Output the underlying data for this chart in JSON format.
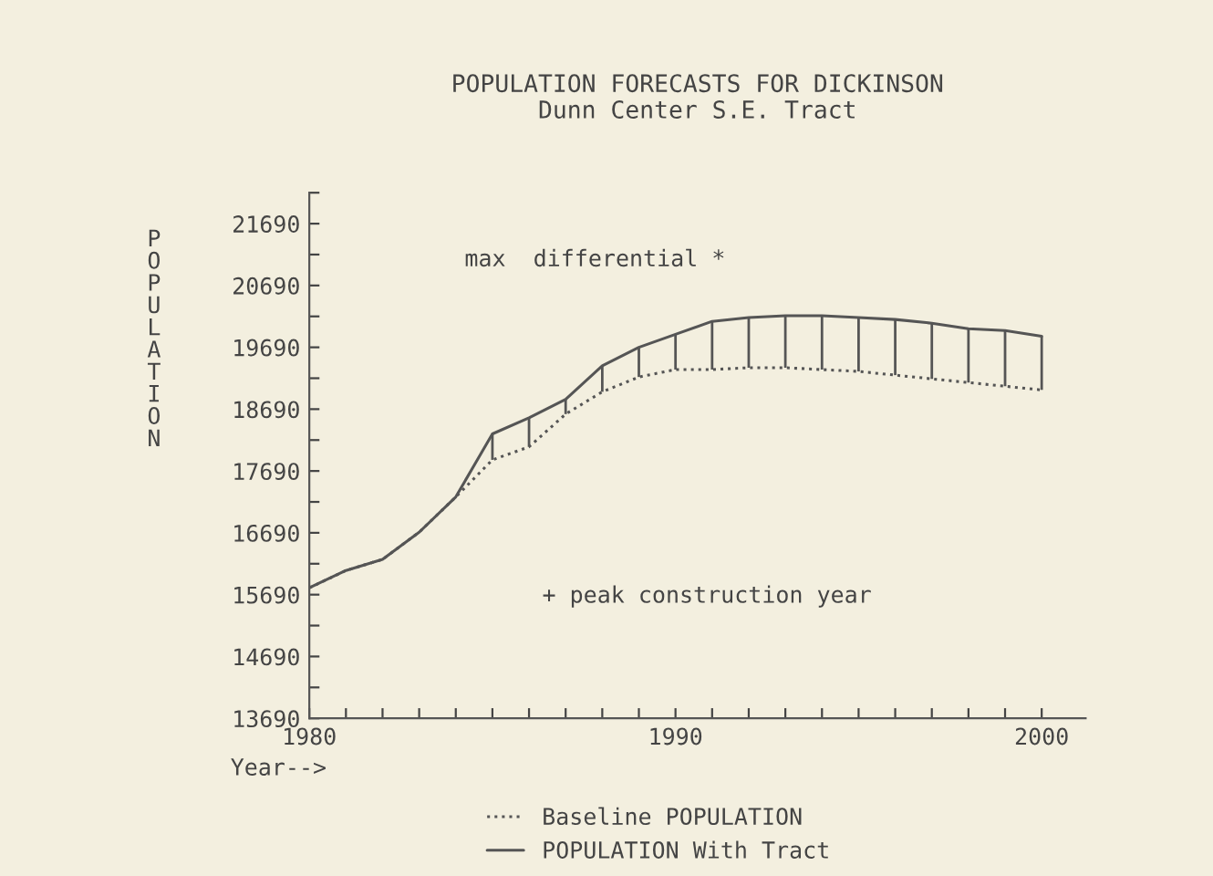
{
  "chart_data": {
    "type": "line",
    "title": "POPULATION FORECASTS FOR DICKINSON",
    "subtitle": "Dunn Center S.E. Tract",
    "xlabel": "Year-->",
    "ylabel": "POPULATION",
    "x": [
      1980,
      1981,
      1982,
      1983,
      1984,
      1985,
      1986,
      1987,
      1988,
      1989,
      1990,
      1991,
      1992,
      1993,
      1994,
      1995,
      1996,
      1997,
      1998,
      1999,
      2000
    ],
    "series": [
      {
        "name": "Baseline POPULATION",
        "color": "#555555",
        "line_style": "dotted",
        "values": [
          15800,
          16080,
          16260,
          16700,
          17270,
          17870,
          18080,
          18610,
          18970,
          19210,
          19330,
          19330,
          19360,
          19360,
          19330,
          19300,
          19240,
          19180,
          19120,
          19060,
          19000
        ],
        "errors": [
          null,
          null,
          null,
          null,
          null,
          [
            17870,
            18290
          ],
          [
            18080,
            18550
          ],
          [
            18610,
            18850
          ],
          [
            18970,
            19390
          ],
          [
            19210,
            19690
          ],
          [
            19330,
            19900
          ],
          [
            19330,
            20110
          ],
          [
            19360,
            20170
          ],
          [
            19360,
            20200
          ],
          [
            19330,
            20200
          ],
          [
            19300,
            20170
          ],
          [
            19240,
            20140
          ],
          [
            19180,
            20080
          ],
          [
            19120,
            19990
          ],
          [
            19060,
            19960
          ],
          [
            19000,
            19870
          ]
        ]
      },
      {
        "name": "POPULATION With Tract",
        "color": "#555555",
        "line_style": "solid",
        "values": [
          15800,
          16080,
          16260,
          16700,
          17270,
          18290,
          18550,
          18850,
          19390,
          19690,
          19900,
          20110,
          20170,
          20200,
          20200,
          20170,
          20140,
          20080,
          19990,
          19960,
          19870
        ]
      }
    ],
    "xlim": [
      1980,
      2001.2
    ],
    "xticks": [
      1980,
      {
        "value": 1981,
        "label": null
      },
      {
        "value": 1982,
        "label": null
      },
      {
        "value": 1983,
        "label": null
      },
      {
        "value": 1984,
        "label": null
      },
      {
        "value": 1985,
        "label": null
      },
      {
        "value": 1986,
        "label": null
      },
      {
        "value": 1987,
        "label": null
      },
      {
        "value": 1988,
        "label": null
      },
      {
        "value": 1989,
        "label": null
      },
      1990,
      {
        "value": 1991,
        "label": null
      },
      {
        "value": 1992,
        "label": null
      },
      {
        "value": 1993,
        "label": null
      },
      {
        "value": 1994,
        "label": null
      },
      {
        "value": 1995,
        "label": null
      },
      {
        "value": 1996,
        "label": null
      },
      {
        "value": 1997,
        "label": null
      },
      {
        "value": 1998,
        "label": null
      },
      {
        "value": 1999,
        "label": null
      },
      2000
    ],
    "ylim": [
      13690,
      22190
    ],
    "yticks": [
      13690,
      {
        "value": 14190,
        "label": null
      },
      14690,
      {
        "value": 15190,
        "label": null
      },
      15690,
      {
        "value": 16190,
        "label": null
      },
      16690,
      {
        "value": 17190,
        "label": null
      },
      17690,
      {
        "value": 18190,
        "label": null
      },
      18690,
      {
        "value": 19190,
        "label": null
      },
      19690,
      {
        "value": 20190,
        "label": null
      },
      20690,
      {
        "value": 21190,
        "label": null
      },
      21690,
      {
        "value": 22190,
        "label": null
      }
    ],
    "annotations": [
      "max  differential *",
      "+ peak construction year"
    ],
    "grid": false,
    "legend": "bottom",
    "marker": "none"
  }
}
